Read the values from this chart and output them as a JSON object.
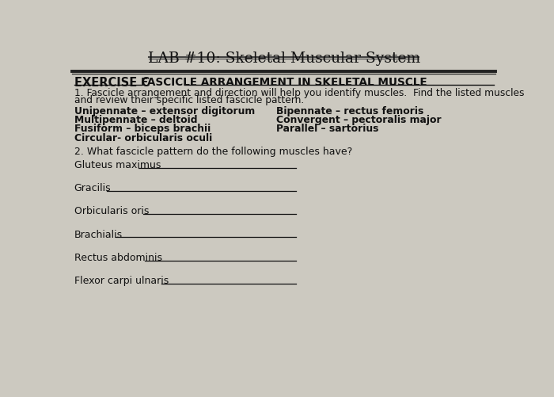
{
  "title": "LAB #10: Skeletal Muscular System",
  "background_color": "#ccc9c0",
  "exercise_label": "EXERCISE C",
  "section_title": "FASCICLE ARRANGEMENT IN SKELETAL MUSCLE",
  "intro_line1": "1. Fascicle arrangement and direction will help you identify muscles.  Find the listed muscles",
  "intro_line2": "and review their specific listed fascicle pattern.",
  "left_column": [
    "Unipennate – extensor digitorum",
    "Multipennate – deltoid",
    "Fusiform – biceps brachii",
    "Circular- orbicularis oculi"
  ],
  "right_column": [
    "Bipennate – rectus femoris",
    "Convergent – pectoralis major",
    "Parallel – sartorius"
  ],
  "question2": "2. What fascicle pattern do the following muscles have?",
  "fill_items": [
    "Gluteus maximus",
    "Gracilis",
    "Orbicularis oris",
    "Brachialis",
    "Rectus abdominis",
    "Flexor carpi ulnaris"
  ],
  "text_color": "#111111",
  "char_widths": {
    "Gluteus maximus": 105,
    "Gracilis": 53,
    "Orbicularis oris": 112,
    "Brachialis": 68,
    "Rectus abdominis": 115,
    "Flexor carpi ulnaris": 142
  }
}
